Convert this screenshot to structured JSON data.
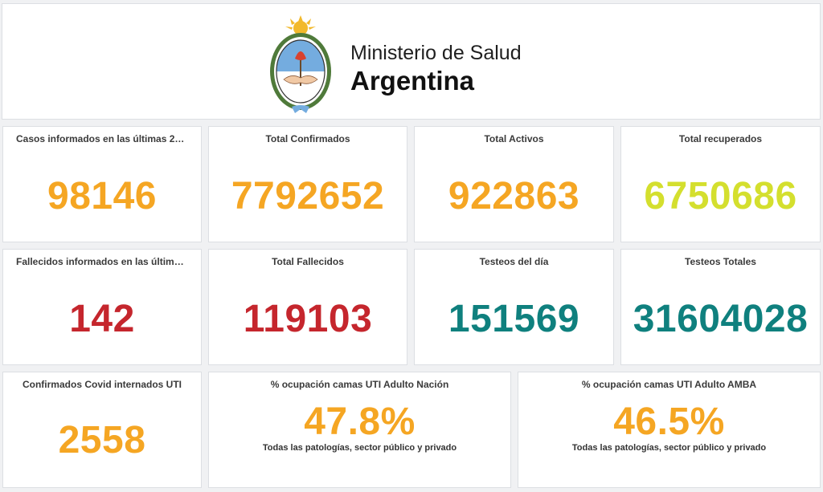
{
  "header": {
    "brand_line1": "Ministerio de Salud",
    "brand_line2": "Argentina",
    "logo_icon": "argentina-coat-of-arms-icon"
  },
  "colors": {
    "orange": "#f5a623",
    "red": "#c5262d",
    "teal": "#0f807e",
    "lime": "#d4df2e"
  },
  "row1": [
    {
      "title": "Casos informados en las últimas 24…",
      "value": "98146"
    },
    {
      "title": "Total Confirmados",
      "value": "7792652"
    },
    {
      "title": "Total Activos",
      "value": "922863"
    },
    {
      "title": "Total recuperados",
      "value": "6750686"
    }
  ],
  "row2": [
    {
      "title": "Fallecidos informados en las última…",
      "value": "142"
    },
    {
      "title": "Total Fallecidos",
      "value": "119103"
    },
    {
      "title": "Testeos del día",
      "value": "151569"
    },
    {
      "title": "Testeos Totales",
      "value": "31604028"
    }
  ],
  "row3": [
    {
      "title": "Confirmados Covid internados UTI",
      "value": "2558"
    },
    {
      "title": "% ocupación camas UTI Adulto Nación",
      "value": "47.8%",
      "subtitle": "Todas las patologías, sector público y privado"
    },
    {
      "title": "% ocupación camas UTI Adulto AMBA",
      "value": "46.5%",
      "subtitle": "Todas las patologías, sector público y privado"
    }
  ]
}
